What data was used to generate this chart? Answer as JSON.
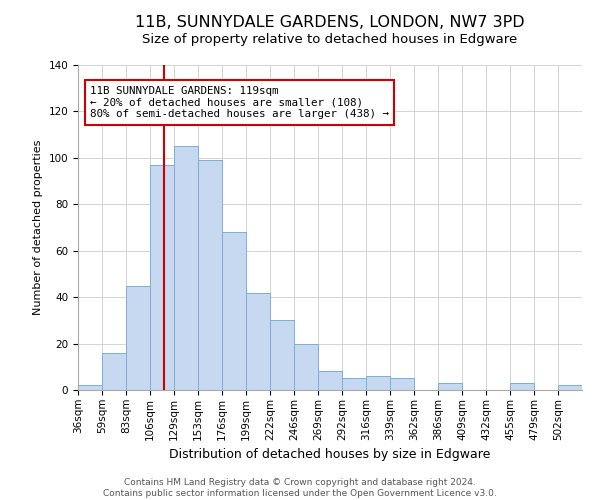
{
  "title": "11B, SUNNYDALE GARDENS, LONDON, NW7 3PD",
  "subtitle": "Size of property relative to detached houses in Edgware",
  "xlabel": "Distribution of detached houses by size in Edgware",
  "ylabel": "Number of detached properties",
  "bin_labels": [
    "36sqm",
    "59sqm",
    "83sqm",
    "106sqm",
    "129sqm",
    "153sqm",
    "176sqm",
    "199sqm",
    "222sqm",
    "246sqm",
    "269sqm",
    "292sqm",
    "316sqm",
    "339sqm",
    "362sqm",
    "386sqm",
    "409sqm",
    "432sqm",
    "455sqm",
    "479sqm",
    "502sqm"
  ],
  "bar_heights": [
    2,
    16,
    45,
    97,
    105,
    99,
    68,
    42,
    30,
    20,
    8,
    5,
    6,
    5,
    0,
    3,
    0,
    0,
    3,
    0,
    2
  ],
  "bar_color": "#c6d9f0",
  "bar_edge_color": "#7bafd4",
  "vline_x_index": 3.6,
  "vline_color": "#cc0000",
  "annotation_text": "11B SUNNYDALE GARDENS: 119sqm\n← 20% of detached houses are smaller (108)\n80% of semi-detached houses are larger (438) →",
  "annotation_box_edge_color": "#cc0000",
  "annotation_box_face_color": "#ffffff",
  "ylim": [
    0,
    140
  ],
  "yticks": [
    0,
    20,
    40,
    60,
    80,
    100,
    120,
    140
  ],
  "footer_text": "Contains HM Land Registry data © Crown copyright and database right 2024.\nContains public sector information licensed under the Open Government Licence v3.0.",
  "background_color": "#ffffff",
  "grid_color": "#cccccc",
  "title_fontsize": 11.5,
  "subtitle_fontsize": 9.5,
  "xlabel_fontsize": 9,
  "ylabel_fontsize": 8,
  "tick_fontsize": 7.5,
  "footer_fontsize": 6.5,
  "annotation_fontsize": 7.8
}
